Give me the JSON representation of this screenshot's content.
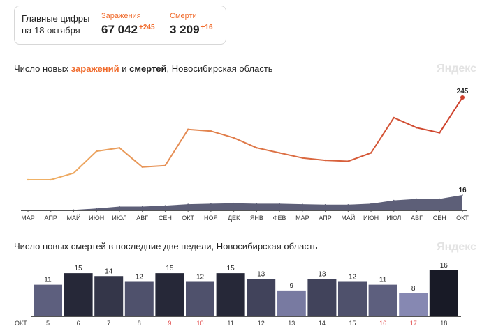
{
  "summary": {
    "title": "Главные цифры на 18 октября",
    "cases": {
      "label": "Заражения",
      "value": "67 042",
      "delta": "+245"
    },
    "deaths": {
      "label": "Смерти",
      "value": "3 209",
      "delta": "+16"
    }
  },
  "section1": {
    "title_prefix": "Число новых ",
    "title_cases": "заражений",
    "title_mid": " и ",
    "title_deaths": "смертей",
    "title_suffix": ", Новосибирская область"
  },
  "section2": {
    "title": "Число новых смертей в последние две недели, Новосибирская область"
  },
  "brand": "Яндекс",
  "colors": {
    "cases_early": "#f1b568",
    "cases_late": "#cd3e2a",
    "deaths_area": "#5d5f78",
    "axis": "#555555",
    "weekend_label": "#e04848"
  },
  "chart_data": [
    {
      "type": "line",
      "name": "daily-cases",
      "x": [
        "2020-03",
        "2020-04",
        "2020-05",
        "2020-06",
        "2020-07",
        "2020-08",
        "2020-09",
        "2020-10",
        "2020-11",
        "2020-12",
        "2021-01",
        "2021-02",
        "2021-03",
        "2021-04",
        "2021-05",
        "2021-06",
        "2021-07",
        "2021-08",
        "2021-09",
        "2021-10"
      ],
      "values": [
        0,
        0,
        20,
        85,
        95,
        38,
        42,
        150,
        145,
        125,
        95,
        80,
        65,
        58,
        55,
        80,
        185,
        155,
        140,
        245
      ],
      "last_label": "245",
      "ylim": [
        0,
        245
      ]
    },
    {
      "type": "area",
      "name": "daily-deaths",
      "x": [
        "2020-03",
        "2020-04",
        "2020-05",
        "2020-06",
        "2020-07",
        "2020-08",
        "2020-09",
        "2020-10",
        "2020-11",
        "2020-12",
        "2021-01",
        "2021-02",
        "2021-03",
        "2021-04",
        "2021-05",
        "2021-06",
        "2021-07",
        "2021-08",
        "2021-09",
        "2021-10"
      ],
      "values": [
        0,
        0,
        0.5,
        2,
        4,
        4,
        5,
        6.5,
        7,
        7.5,
        7,
        7,
        6.5,
        6,
        6,
        7,
        10.5,
        12,
        12,
        16
      ],
      "last_label": "16",
      "ylim": [
        0,
        16
      ],
      "x_tick_labels": [
        "МАР",
        "АПР",
        "МАЙ",
        "ИЮН",
        "ИЮЛ",
        "АВГ",
        "СЕН",
        "ОКТ",
        "НОЯ",
        "ДЕК",
        "ЯНВ",
        "ФЕВ",
        "МАР",
        "АПР",
        "МАЙ",
        "ИЮН",
        "ИЮЛ",
        "АВГ",
        "СЕН",
        "ОКТ"
      ]
    },
    {
      "type": "bar",
      "name": "deaths-last-two-weeks",
      "month_label": "ОКТ",
      "categories": [
        "5",
        "6",
        "7",
        "8",
        "9",
        "10",
        "11",
        "12",
        "13",
        "14",
        "15",
        "16",
        "17",
        "18"
      ],
      "values": [
        11,
        15,
        14,
        12,
        15,
        12,
        15,
        13,
        9,
        13,
        12,
        11,
        8,
        16
      ],
      "weekend": [
        false,
        false,
        false,
        false,
        true,
        true,
        false,
        false,
        false,
        false,
        false,
        true,
        true,
        false
      ],
      "ylim": [
        0,
        16
      ]
    }
  ]
}
